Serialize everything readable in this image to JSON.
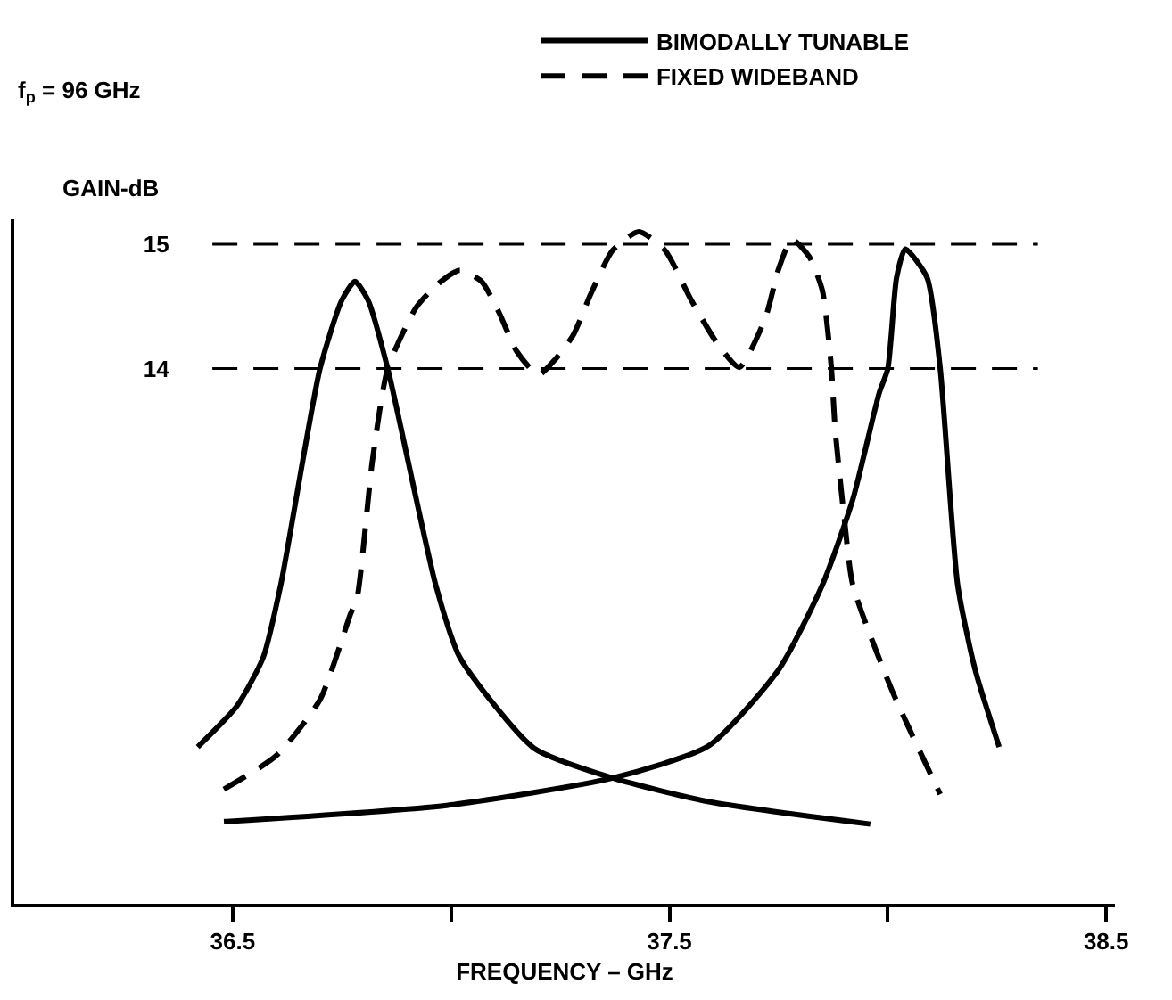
{
  "chart_data": {
    "type": "line",
    "xlabel": "FREQUENCY – GHz",
    "ylabel": "GAIN-dB",
    "annotations": [
      "f$_{p}$ = 96 GHz"
    ],
    "xlim": [
      36.0,
      38.52
    ],
    "xticks": [
      36.5,
      {
        "value": 37.0,
        "label": null
      },
      37.5,
      {
        "value": 38.0,
        "label": null
      },
      38.5
    ],
    "ylim": [
      9.7,
      15.2
    ],
    "yticks": [
      14,
      15
    ],
    "grid": false,
    "legend": "top right",
    "marker": "none",
    "ref_lines": [
      {
        "axis": "y",
        "value": 15,
        "color": "#000000",
        "line_style": "dashed"
      },
      {
        "axis": "y",
        "value": 14,
        "color": "#000000",
        "line_style": "dashed"
      }
    ],
    "series": [
      {
        "name": "BIMODALLY TUNABLE",
        "color": "#000000",
        "line_style": "solid",
        "x": [
          36.42,
          36.51,
          36.57,
          36.61,
          36.7,
          36.75,
          36.78,
          36.81,
          36.855,
          36.965,
          37.02,
          37.19,
          37.37,
          37.59,
          37.96,
          null,
          36.48,
          36.99,
          37.37,
          37.59,
          37.75,
          37.85,
          37.92,
          37.98,
          38.0,
          38.02,
          38.04,
          38.09,
          38.12,
          38.16,
          38.2,
          38.255
        ],
        "values": [
          10.96,
          11.29,
          11.68,
          12.26,
          14.0,
          14.55,
          14.7,
          14.55,
          14.0,
          12.26,
          11.68,
          10.95,
          10.71,
          10.52,
          10.34,
          null,
          10.36,
          10.49,
          10.71,
          10.97,
          11.58,
          12.26,
          12.95,
          13.8,
          14.0,
          14.73,
          14.96,
          14.73,
          14.0,
          12.26,
          11.58,
          10.96
        ]
      },
      {
        "name": "FIXED WIDEBAND",
        "color": "#000000",
        "line_style": "dashed",
        "x": [
          36.48,
          36.6,
          36.7,
          36.77,
          36.785,
          36.82,
          36.855,
          36.92,
          36.97,
          37.02,
          37.07,
          37.11,
          37.15,
          37.2,
          37.24,
          37.28,
          37.32,
          37.37,
          37.43,
          37.49,
          37.55,
          37.61,
          37.66,
          37.72,
          37.75,
          37.78,
          37.82,
          37.85,
          37.87,
          37.88,
          37.9,
          37.92,
          38.01,
          38.12
        ],
        "values": [
          10.62,
          10.89,
          11.34,
          12.03,
          12.16,
          13.26,
          14.0,
          14.49,
          14.68,
          14.79,
          14.7,
          14.45,
          14.14,
          13.95,
          14.08,
          14.27,
          14.6,
          14.95,
          15.1,
          14.95,
          14.55,
          14.2,
          14.01,
          14.41,
          14.8,
          15.04,
          14.9,
          14.63,
          14.04,
          13.49,
          12.81,
          12.26,
          11.41,
          10.58
        ]
      }
    ]
  }
}
